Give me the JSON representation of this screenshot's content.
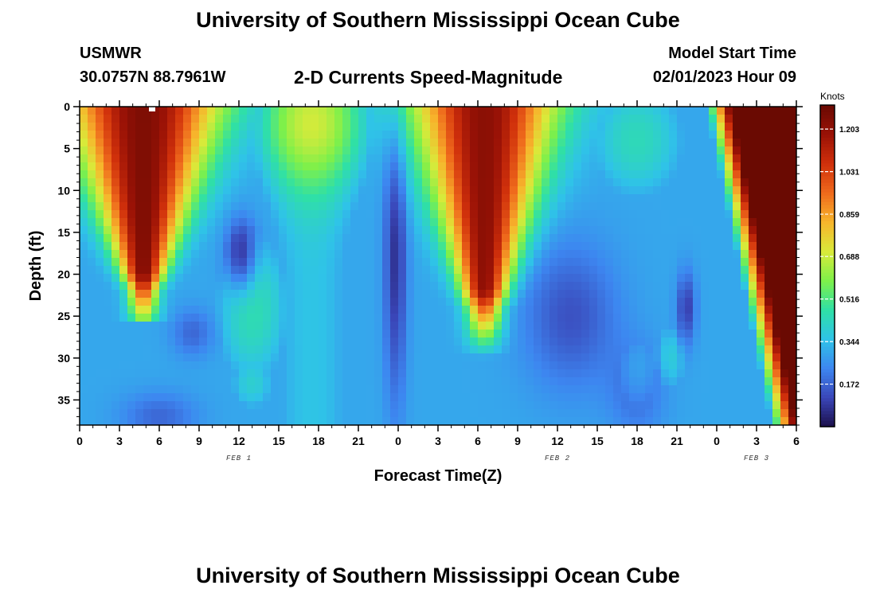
{
  "header": {
    "title": "University of Southern Mississippi Ocean Cube",
    "station_id": "USMWR",
    "station_coords": "30.0757N  88.7961W",
    "subtitle": "2-D Currents Speed-Magnitude",
    "start_label": "Model Start Time",
    "start_value": "02/01/2023 Hour 09"
  },
  "footer": {
    "title": "University of Southern Mississippi Ocean Cube"
  },
  "chart_data": {
    "type": "heatmap",
    "title": "2-D Currents Speed-Magnitude",
    "xlabel": "Forecast Time(Z)",
    "ylabel": "Depth (ft)",
    "x_ticks": [
      "0",
      "3",
      "6",
      "9",
      "12",
      "15",
      "18",
      "21",
      "0",
      "3",
      "6",
      "9",
      "12",
      "15",
      "18",
      "21",
      "0",
      "3",
      "6"
    ],
    "x_range_hours": [
      0,
      54
    ],
    "date_labels": [
      {
        "label": "FEB 1",
        "hour": 12
      },
      {
        "label": "FEB 2",
        "hour": 36
      },
      {
        "label": "FEB 3",
        "hour": 51
      }
    ],
    "y_ticks": [
      "0",
      "5",
      "10",
      "15",
      "20",
      "25",
      "30",
      "35"
    ],
    "ylim": [
      0,
      38
    ],
    "y_inverted": true,
    "colorbar": {
      "unit": "Knots",
      "ticks": [
        "0.172",
        "0.344",
        "0.516",
        "0.688",
        "0.859",
        "1.031",
        "1.203"
      ],
      "range": [
        0,
        1.3
      ],
      "colors": [
        "#1b0f4a",
        "#3a46b8",
        "#3d86f0",
        "#2fc3e8",
        "#2fe0a6",
        "#7ef04a",
        "#d9ea3a",
        "#f7b52c",
        "#ef6a1c",
        "#d0300b",
        "#9a1206",
        "#6a0a02"
      ]
    },
    "field_summary": [
      {
        "feature": "high-speed core",
        "hours": [
          1,
          9
        ],
        "depth_ft": [
          0,
          22
        ],
        "peak_knots": 1.25
      },
      {
        "feature": "moderate band",
        "hours": [
          12,
          22
        ],
        "depth_ft": [
          0,
          10
        ],
        "peak_knots": 0.72
      },
      {
        "feature": "low-speed pocket",
        "hours": [
          11,
          14
        ],
        "depth_ft": [
          14,
          22
        ],
        "peak_knots": 0.08
      },
      {
        "feature": "high-speed core",
        "hours": [
          27,
          35
        ],
        "depth_ft": [
          0,
          24
        ],
        "peak_knots": 1.2
      },
      {
        "feature": "low-speed pocket",
        "hours": [
          45,
          48
        ],
        "depth_ft": [
          21,
          28
        ],
        "peak_knots": 0.05
      },
      {
        "feature": "high-speed wedge",
        "hours": [
          49,
          54
        ],
        "depth_ft": [
          0,
          38
        ],
        "peak_knots": 1.28
      }
    ]
  }
}
